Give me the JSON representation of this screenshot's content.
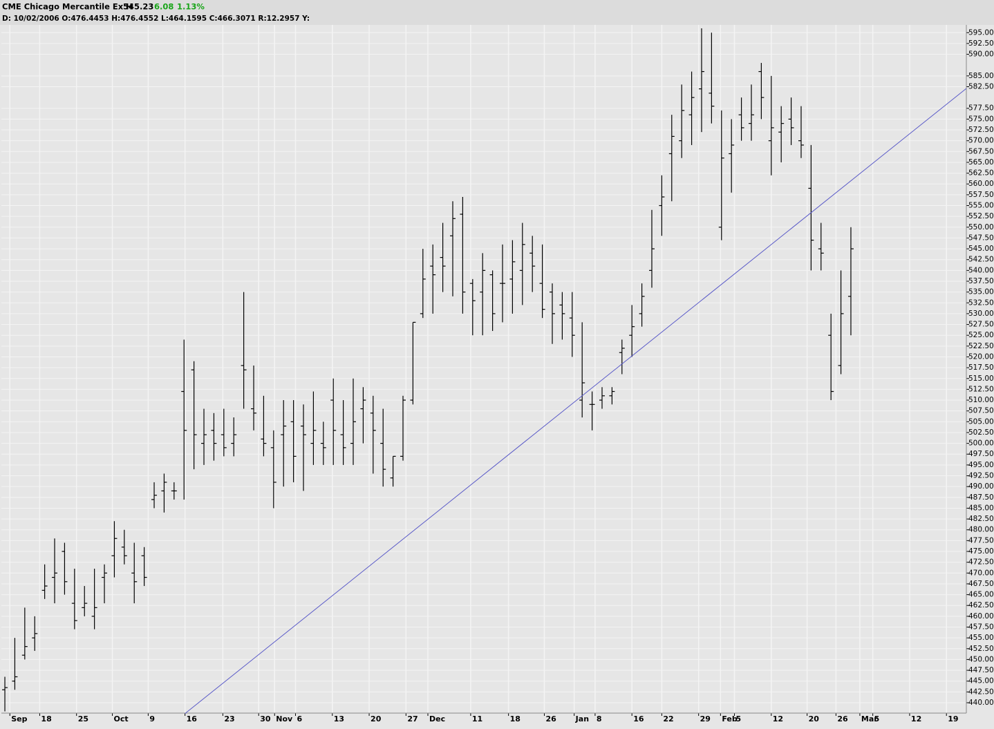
{
  "header": {
    "symbol": "CME Chicago Mercantile Ex H",
    "last": "545.23",
    "change": "6.08",
    "change_pct": "1.13%",
    "info": "D: 10/02/2006 O:476.4453 H:476.4552 L:464.1595 C:466.3071 R:12.2957 Y:"
  },
  "chart_data": {
    "type": "ohlc",
    "grid": true,
    "color": "#000000",
    "grid_color": "#f4f4f4",
    "background": "#e6e6e6",
    "open": [
      443,
      445,
      451,
      455,
      466,
      469,
      475,
      463,
      462,
      460,
      469,
      474,
      476,
      470,
      474,
      487,
      489,
      489,
      512,
      517,
      500,
      503,
      502,
      500,
      518,
      508,
      501,
      499,
      502,
      505,
      504,
      500,
      500,
      510,
      502,
      500,
      508,
      507,
      500,
      492,
      497,
      510,
      530,
      541,
      543,
      548,
      553,
      537,
      535,
      539,
      537,
      538,
      540,
      544,
      537,
      535,
      532,
      529,
      510,
      509,
      510,
      511,
      521,
      525,
      530,
      540,
      555,
      567,
      570,
      576,
      582,
      581,
      550,
      567,
      576,
      574,
      586,
      570,
      572,
      575,
      570,
      559,
      545,
      525,
      518,
      534
    ],
    "high": [
      446,
      455,
      462,
      460,
      472,
      478,
      477,
      471,
      467,
      471,
      472,
      482,
      480,
      477,
      476,
      491,
      493,
      491,
      524,
      519,
      508,
      507,
      508,
      506,
      535,
      518,
      511,
      503,
      510,
      510,
      509,
      512,
      505,
      515,
      510,
      515,
      513,
      511,
      508,
      497,
      511,
      528,
      545,
      546,
      551,
      556,
      557,
      538,
      544,
      540,
      546,
      547,
      551,
      548,
      546,
      537,
      535,
      535,
      528,
      512,
      513,
      513,
      524,
      532,
      537,
      554,
      562,
      576,
      583,
      586,
      596,
      595,
      577,
      575,
      580,
      583,
      588,
      585,
      578,
      580,
      578,
      569,
      551,
      530,
      540,
      550
    ],
    "low": [
      438,
      443,
      450,
      452,
      464,
      463,
      465,
      457,
      460,
      457,
      463,
      469,
      472,
      463,
      467,
      485,
      484,
      487,
      487,
      494,
      495,
      496,
      497,
      497,
      508,
      503,
      497,
      485,
      490,
      491,
      489,
      495,
      495,
      495,
      495,
      495,
      500,
      493,
      490,
      490,
      496,
      509,
      529,
      530,
      535,
      534,
      530,
      525,
      525,
      526,
      528,
      530,
      532,
      535,
      529,
      523,
      524,
      520,
      506,
      503,
      508,
      509,
      516,
      520,
      527,
      536,
      548,
      556,
      566,
      569,
      572,
      574,
      547,
      558,
      570,
      570,
      575,
      562,
      565,
      569,
      566,
      540,
      540,
      510,
      516,
      525
    ],
    "close": [
      443.5,
      446,
      453,
      456,
      467,
      470,
      468,
      459,
      463,
      462,
      470,
      478,
      474,
      468,
      469,
      488,
      491,
      489,
      503,
      502,
      502,
      500,
      499,
      502,
      517,
      507,
      500,
      491,
      504,
      497,
      502,
      503,
      499,
      503,
      499,
      505,
      510,
      503,
      494,
      497,
      510,
      528,
      538,
      539,
      541,
      552,
      535,
      533,
      540,
      530,
      537,
      542,
      546,
      541,
      531,
      530,
      530,
      525,
      514,
      509,
      511,
      512,
      522,
      527,
      534,
      545,
      557,
      571,
      577,
      580,
      586,
      578,
      566,
      569,
      573,
      576,
      580,
      573,
      574,
      573,
      569,
      547,
      544,
      512,
      530,
      545
    ],
    "trendline": {
      "x": [
        18.1,
        96.6
      ],
      "y": [
        437.5,
        582.1
      ],
      "color": "#5a5ac8"
    },
    "xlim": [
      -0.35,
      96.6
    ],
    "xticks": [
      {
        "value": 0.5,
        "label": "Sep"
      },
      {
        "value": 3.5,
        "label": "18"
      },
      {
        "value": 7.2,
        "label": "25"
      },
      {
        "value": 10.8,
        "label": "Oct"
      },
      {
        "value": 14.4,
        "label": "9"
      },
      {
        "value": 18.1,
        "label": "16"
      },
      {
        "value": 21.9,
        "label": "23"
      },
      {
        "value": 25.5,
        "label": "30"
      },
      {
        "value": 27.1,
        "label": "Nov"
      },
      {
        "value": 29.2,
        "label": "6"
      },
      {
        "value": 32.9,
        "label": "13"
      },
      {
        "value": 36.6,
        "label": "20"
      },
      {
        "value": 40.3,
        "label": "27"
      },
      {
        "value": 42.5,
        "label": "Dec"
      },
      {
        "value": 46.8,
        "label": "11"
      },
      {
        "value": 50.6,
        "label": "18"
      },
      {
        "value": 54.2,
        "label": "26"
      },
      {
        "value": 57.2,
        "label": "Jan"
      },
      {
        "value": 59.3,
        "label": "8"
      },
      {
        "value": 63.0,
        "label": "16"
      },
      {
        "value": 66.0,
        "label": "22"
      },
      {
        "value": 69.7,
        "label": "29"
      },
      {
        "value": 71.9,
        "label": "Feb"
      },
      {
        "value": 73.3,
        "label": "5"
      },
      {
        "value": 77.0,
        "label": "12"
      },
      {
        "value": 80.6,
        "label": "20"
      },
      {
        "value": 83.5,
        "label": "26"
      },
      {
        "value": 85.9,
        "label": "Mar"
      },
      {
        "value": 87.2,
        "label": "5"
      },
      {
        "value": 90.9,
        "label": "12"
      },
      {
        "value": 94.6,
        "label": "19"
      }
    ],
    "ylim": [
      437.6,
      596.8
    ],
    "yticks": [
      {
        "value": 440,
        "label": "440.00"
      },
      {
        "value": 442.5,
        "label": "442.50"
      },
      {
        "value": 445,
        "label": "445.00"
      },
      {
        "value": 447.5,
        "label": "447.50"
      },
      {
        "value": 450,
        "label": "450.00"
      },
      {
        "value": 452.5,
        "label": "452.50"
      },
      {
        "value": 455,
        "label": "455.00"
      },
      {
        "value": 457.5,
        "label": "457.50"
      },
      {
        "value": 460,
        "label": "460.00"
      },
      {
        "value": 462.5,
        "label": "462.50"
      },
      {
        "value": 465,
        "label": "465.00"
      },
      {
        "value": 467.5,
        "label": "467.50"
      },
      {
        "value": 470,
        "label": "470.00"
      },
      {
        "value": 472.5,
        "label": "472.50"
      },
      {
        "value": 475,
        "label": "475.00"
      },
      {
        "value": 477.5,
        "label": "477.50"
      },
      {
        "value": 480,
        "label": "480.00"
      },
      {
        "value": 482.5,
        "label": "482.50"
      },
      {
        "value": 485,
        "label": "485.00"
      },
      {
        "value": 487.5,
        "label": "487.50"
      },
      {
        "value": 490,
        "label": "490.00"
      },
      {
        "value": 492.5,
        "label": "492.50"
      },
      {
        "value": 495,
        "label": "495.00"
      },
      {
        "value": 497.5,
        "label": "497.50"
      },
      {
        "value": 500,
        "label": "500.00"
      },
      {
        "value": 502.5,
        "label": "502.50"
      },
      {
        "value": 505,
        "label": "505.00"
      },
      {
        "value": 507.5,
        "label": "507.50"
      },
      {
        "value": 510,
        "label": "510.00"
      },
      {
        "value": 512.5,
        "label": "512.50"
      },
      {
        "value": 515,
        "label": "515.00"
      },
      {
        "value": 517.5,
        "label": "517.50"
      },
      {
        "value": 520,
        "label": "520.00"
      },
      {
        "value": 522.5,
        "label": "522.50"
      },
      {
        "value": 525,
        "label": "525.00"
      },
      {
        "value": 527.5,
        "label": "527.50"
      },
      {
        "value": 530,
        "label": "530.00"
      },
      {
        "value": 532.5,
        "label": "532.50"
      },
      {
        "value": 535,
        "label": "535.00"
      },
      {
        "value": 537.5,
        "label": "537.50"
      },
      {
        "value": 540,
        "label": "540.00"
      },
      {
        "value": 542.5,
        "label": "542.50"
      },
      {
        "value": 545,
        "label": "545.00"
      },
      {
        "value": 547.5,
        "label": "547.50"
      },
      {
        "value": 550,
        "label": "550.00"
      },
      {
        "value": 552.5,
        "label": "552.50"
      },
      {
        "value": 555,
        "label": "555.00"
      },
      {
        "value": 557.5,
        "label": "557.50"
      },
      {
        "value": 560,
        "label": "560.00"
      },
      {
        "value": 562.5,
        "label": "562.50"
      },
      {
        "value": 565,
        "label": "565.00"
      },
      {
        "value": 567.5,
        "label": "567.50"
      },
      {
        "value": 570,
        "label": "570.00"
      },
      {
        "value": 572.5,
        "label": "572.50"
      },
      {
        "value": 575,
        "label": "575.00"
      },
      {
        "value": 577.5,
        "label": "577.50"
      },
      {
        "value": 582.5,
        "label": "582.50"
      },
      {
        "value": 585,
        "label": "585.00"
      },
      {
        "value": 590,
        "label": "590.00"
      },
      {
        "value": 592.5,
        "label": "592.50"
      },
      {
        "value": 595,
        "label": "595.00"
      }
    ]
  }
}
